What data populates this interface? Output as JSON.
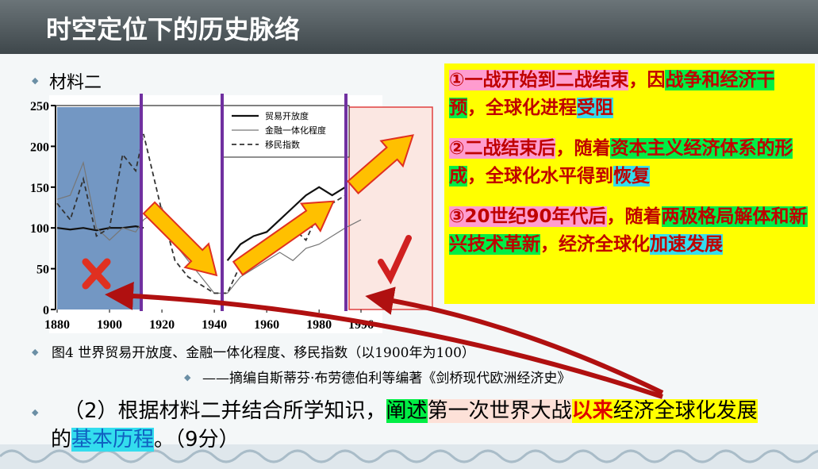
{
  "header": {
    "title": "时空定位下的历史脉络"
  },
  "material_label": "材料二",
  "chart_data": {
    "type": "line",
    "x": [
      1880,
      1885,
      1890,
      1895,
      1900,
      1905,
      1910,
      1913,
      1920,
      1925,
      1930,
      1935,
      1940,
      1945,
      1950,
      1955,
      1960,
      1965,
      1970,
      1975,
      1980,
      1985,
      1990,
      1996
    ],
    "series": [
      {
        "name": "贸易开放度",
        "color": "#111111",
        "values": [
          100,
          98,
          100,
          97,
          100,
          100,
          102,
          100,
          null,
          null,
          null,
          null,
          null,
          60,
          80,
          90,
          95,
          110,
          125,
          140,
          150,
          140,
          150,
          null
        ]
      },
      {
        "name": "金融一体化程度",
        "color": "#777777",
        "values": [
          135,
          140,
          180,
          100,
          85,
          100,
          95,
          110,
          125,
          80,
          60,
          40,
          20,
          20,
          40,
          50,
          60,
          70,
          60,
          75,
          80,
          90,
          100,
          110
        ]
      },
      {
        "name": "移民指数",
        "color": "#333333",
        "values": [
          130,
          110,
          160,
          90,
          100,
          190,
          170,
          215,
          120,
          60,
          40,
          30,
          20,
          20,
          55,
          60,
          65,
          80,
          100,
          85,
          120,
          130,
          140,
          null
        ]
      }
    ],
    "xlim": [
      1880,
      1996
    ],
    "xticks": [
      1880,
      1900,
      1920,
      1940,
      1960,
      1980,
      1996
    ],
    "ylim": [
      0,
      250
    ],
    "yticks": [
      0,
      50,
      100,
      150,
      200,
      250
    ]
  },
  "caption": "图4 世界贸易开放度、金融一体化程度、移民指数（以1900年为100）",
  "source": "——摘编自斯蒂芬·布劳德伯利等编著《剑桥现代欧洲经济史》",
  "notes": [
    [
      "①一战开始到二战结束",
      "，因",
      "战争和经济干预",
      "，全球化进程",
      "受阻"
    ],
    [
      "②二战结束后",
      "，随着",
      "资本主义经济体系的形成",
      "，全球化水平得到",
      "恢复"
    ],
    [
      "③20世纪90年代后",
      "，随着",
      "两极格局解体和新兴技术革新",
      "，经济全球化",
      "加速发展"
    ]
  ],
  "question": [
    "（2）根据材料二并结合所学知识，",
    "阐述",
    "第一次世界大战",
    "以来",
    "经济全球化发展",
    "的",
    "基本历程",
    "。（9分）"
  ]
}
